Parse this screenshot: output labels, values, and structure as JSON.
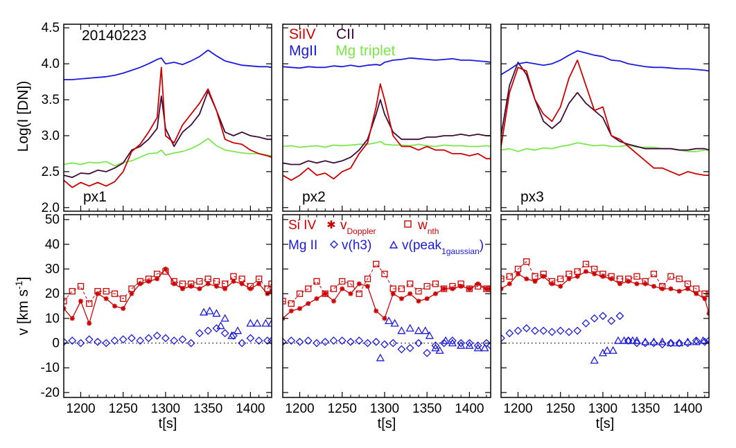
{
  "chart_data": {
    "type": "line",
    "date_label": "20140223",
    "x_label": "t[s]",
    "x_range": [
      1180,
      1425
    ],
    "x_ticks": [
      "1200",
      "1250",
      "1300",
      "1350",
      "1400"
    ],
    "top": {
      "ylabel_base": "Log(I [DN])",
      "y_range": [
        1.95,
        4.55
      ],
      "y_ticks": [
        "2.0",
        "2.5",
        "3.0",
        "3.5",
        "4.0",
        "4.5"
      ],
      "legend": {
        "siiv": "SiIV",
        "cii": "CII",
        "mgii": "MgII",
        "mgtrip": "Mg triplet"
      }
    },
    "bottom": {
      "ylabel_base": "v [km s",
      "ylabel_sup": "-1",
      "ylabel_end": "]",
      "y_range": [
        -22,
        52
      ],
      "y_ticks": [
        "-20",
        "-10",
        "0",
        "10",
        "20",
        "30",
        "40",
        "50"
      ],
      "legend": {
        "siiv": "Si IV",
        "mgii": "Mg II",
        "vdop": "v",
        "vdop_sub": "Doppler",
        "wnth": "w",
        "wnth_sub": "nth",
        "vh3": "v(h3)",
        "vpeak": "v(peak",
        "vpeak_sub": "1gaussian",
        "vpeak_end": ")"
      }
    },
    "colors": {
      "siiv": "#cc0000",
      "cii": "#3d0a3a",
      "mgii": "#1a1adc",
      "mgtrip": "#7ae64a",
      "axis": "#000000"
    },
    "panels": [
      {
        "label": "px1",
        "top": {
          "x": [
            1180,
            1190,
            1200,
            1210,
            1220,
            1230,
            1240,
            1250,
            1260,
            1270,
            1280,
            1290,
            1295,
            1300,
            1310,
            1320,
            1330,
            1340,
            1350,
            1360,
            1370,
            1380,
            1390,
            1400,
            1410,
            1420,
            1425
          ],
          "mgii": [
            3.78,
            3.78,
            3.79,
            3.8,
            3.81,
            3.82,
            3.84,
            3.87,
            3.91,
            3.95,
            4.0,
            4.06,
            4.08,
            4.0,
            4.02,
            3.99,
            4.04,
            4.1,
            4.19,
            4.11,
            4.04,
            4.01,
            3.98,
            3.97,
            3.96,
            3.96,
            3.95
          ],
          "siiv": [
            2.38,
            2.28,
            2.35,
            2.3,
            2.35,
            2.3,
            2.36,
            2.5,
            2.78,
            2.88,
            3.05,
            3.25,
            3.95,
            3.0,
            2.9,
            3.15,
            3.3,
            3.45,
            3.65,
            3.35,
            2.95,
            2.9,
            2.88,
            2.8,
            2.75,
            2.72,
            2.7
          ],
          "cii": [
            2.45,
            2.42,
            2.48,
            2.47,
            2.52,
            2.5,
            2.55,
            2.62,
            2.8,
            2.85,
            2.95,
            3.1,
            3.55,
            3.1,
            2.85,
            3.05,
            3.15,
            3.3,
            3.62,
            3.35,
            3.05,
            3.0,
            3.05,
            3.0,
            2.98,
            2.95,
            2.95
          ],
          "mgtrip": [
            2.6,
            2.62,
            2.6,
            2.63,
            2.62,
            2.64,
            2.58,
            2.63,
            2.65,
            2.7,
            2.75,
            2.76,
            2.8,
            2.73,
            2.76,
            2.78,
            2.82,
            2.88,
            2.96,
            2.86,
            2.8,
            2.78,
            2.76,
            2.75,
            2.75,
            2.73,
            2.72
          ]
        },
        "bottom": {
          "x": [
            1180,
            1190,
            1200,
            1210,
            1220,
            1230,
            1240,
            1250,
            1260,
            1270,
            1280,
            1290,
            1300,
            1310,
            1320,
            1330,
            1340,
            1350,
            1360,
            1370,
            1380,
            1390,
            1400,
            1410,
            1420,
            1425
          ],
          "vdop": [
            14,
            10,
            17,
            8,
            20,
            18,
            15,
            14,
            20,
            24,
            25,
            26,
            30,
            24,
            22,
            23,
            22,
            24,
            23,
            22,
            25,
            24,
            22,
            24,
            20,
            21
          ],
          "wnth": [
            17,
            21,
            23,
            16,
            21,
            21,
            20,
            18,
            22,
            25,
            26,
            28,
            29,
            25,
            24,
            24,
            25,
            26,
            25,
            24,
            27,
            26,
            23,
            26,
            22,
            24
          ],
          "vh3": [
            0.5,
            1,
            0,
            1.5,
            0.5,
            0,
            1,
            1.5,
            2,
            1,
            2,
            3,
            2,
            1,
            1.5,
            0,
            4,
            5,
            6,
            4,
            3,
            0,
            2,
            1,
            1,
            1
          ],
          "peak_x": [
            1345,
            1352,
            1360,
            1365,
            1370,
            1378,
            1385,
            1400,
            1408,
            1418,
            1425
          ],
          "peak": [
            12.5,
            13,
            12,
            7,
            10,
            3,
            5,
            8,
            8,
            8,
            8
          ]
        }
      },
      {
        "label": "px2",
        "top": {
          "x": [
            1180,
            1190,
            1200,
            1210,
            1220,
            1230,
            1240,
            1250,
            1260,
            1270,
            1280,
            1290,
            1295,
            1300,
            1310,
            1320,
            1330,
            1340,
            1350,
            1360,
            1370,
            1380,
            1390,
            1400,
            1410,
            1420,
            1425
          ],
          "mgii": [
            3.96,
            3.95,
            3.94,
            3.96,
            3.95,
            3.95,
            3.97,
            3.96,
            3.98,
            3.96,
            3.98,
            3.99,
            3.98,
            4.02,
            4.05,
            4.06,
            4.08,
            4.07,
            4.06,
            4.05,
            4.06,
            4.07,
            4.05,
            4.05,
            4.04,
            4.03,
            4.02
          ],
          "siiv": [
            2.45,
            2.38,
            2.45,
            2.55,
            2.45,
            2.48,
            2.4,
            2.5,
            2.55,
            2.75,
            2.9,
            3.4,
            3.72,
            3.5,
            3.0,
            2.85,
            2.85,
            2.8,
            2.85,
            2.8,
            2.8,
            2.75,
            2.75,
            2.72,
            2.75,
            2.68,
            2.68
          ],
          "cii": [
            2.62,
            2.6,
            2.6,
            2.65,
            2.62,
            2.65,
            2.62,
            2.65,
            2.7,
            2.8,
            2.95,
            3.3,
            3.5,
            3.3,
            3.05,
            2.95,
            2.95,
            2.95,
            2.98,
            2.98,
            3.0,
            3.0,
            3.02,
            3.0,
            3.02,
            3.0,
            3.0
          ],
          "mgtrip": [
            2.85,
            2.86,
            2.84,
            2.85,
            2.86,
            2.84,
            2.87,
            2.86,
            2.87,
            2.88,
            2.88,
            2.9,
            2.92,
            2.88,
            2.87,
            2.87,
            2.86,
            2.88,
            2.86,
            2.85,
            2.87,
            2.86,
            2.86,
            2.85,
            2.85,
            2.86,
            2.85
          ]
        },
        "bottom": {
          "x": [
            1180,
            1190,
            1200,
            1210,
            1220,
            1230,
            1240,
            1250,
            1260,
            1270,
            1280,
            1290,
            1300,
            1310,
            1320,
            1330,
            1340,
            1350,
            1360,
            1370,
            1380,
            1390,
            1400,
            1410,
            1420,
            1425
          ],
          "vdop": [
            10,
            13,
            14,
            16,
            18,
            20,
            17,
            22,
            20,
            24,
            23,
            13,
            10,
            20,
            18,
            20,
            17,
            18,
            20,
            22,
            22,
            23,
            22,
            24,
            22,
            22
          ],
          "wnth": [
            17,
            16,
            20,
            22,
            25,
            20,
            22,
            25,
            24,
            20,
            26,
            32,
            28,
            22,
            22,
            24,
            21,
            23,
            24,
            22,
            23,
            24,
            22,
            23,
            22,
            22
          ],
          "vh3": [
            0.5,
            1,
            0.5,
            1,
            0,
            0.5,
            1,
            1,
            0.5,
            1,
            0,
            0.5,
            -0.5,
            0,
            -2.5,
            -2,
            0,
            -4,
            -1,
            0,
            1,
            0,
            0,
            -1,
            0,
            -1
          ],
          "peak_x": [
            1295,
            1305,
            1312,
            1320,
            1330,
            1340,
            1348,
            1353,
            1360,
            1365,
            1372,
            1380,
            1390,
            1400,
            1410,
            1418
          ],
          "peak": [
            -6,
            9,
            8,
            5,
            6,
            5,
            5,
            3,
            -2,
            -3,
            1,
            0,
            -1,
            -1,
            -2,
            -2
          ]
        }
      },
      {
        "label": "px3",
        "top": {
          "x": [
            1180,
            1190,
            1200,
            1210,
            1220,
            1230,
            1240,
            1250,
            1260,
            1270,
            1280,
            1290,
            1300,
            1310,
            1320,
            1330,
            1340,
            1350,
            1360,
            1370,
            1380,
            1390,
            1400,
            1410,
            1420,
            1425
          ],
          "mgii": [
            3.85,
            3.92,
            4.0,
            4.02,
            4.0,
            3.98,
            4.0,
            4.05,
            4.12,
            4.18,
            4.15,
            4.12,
            4.1,
            4.05,
            4.04,
            4.0,
            3.98,
            3.96,
            3.95,
            3.95,
            3.94,
            3.93,
            3.93,
            3.92,
            3.91,
            3.9
          ],
          "siiv": [
            2.85,
            3.6,
            3.95,
            3.9,
            3.5,
            3.3,
            3.2,
            3.4,
            3.8,
            4.05,
            3.7,
            3.35,
            3.4,
            3.0,
            2.95,
            2.85,
            2.75,
            2.65,
            2.55,
            2.55,
            2.5,
            2.45,
            2.5,
            2.47,
            2.45,
            2.45
          ],
          "cii": [
            3.0,
            3.7,
            4.02,
            3.85,
            3.5,
            3.2,
            3.1,
            3.2,
            3.45,
            3.6,
            3.45,
            3.35,
            3.25,
            3.0,
            2.92,
            2.88,
            2.85,
            2.82,
            2.82,
            2.82,
            2.82,
            2.8,
            2.8,
            2.82,
            2.82,
            2.8
          ],
          "mgtrip": [
            2.8,
            2.82,
            2.78,
            2.82,
            2.8,
            2.83,
            2.82,
            2.85,
            2.87,
            2.9,
            2.88,
            2.86,
            2.87,
            2.85,
            2.85,
            2.87,
            2.84,
            2.84,
            2.84,
            2.82,
            2.82,
            2.8,
            2.78,
            2.78,
            2.8,
            2.8
          ]
        },
        "bottom": {
          "x": [
            1180,
            1190,
            1200,
            1210,
            1220,
            1230,
            1240,
            1250,
            1260,
            1270,
            1280,
            1290,
            1300,
            1310,
            1320,
            1330,
            1340,
            1350,
            1360,
            1370,
            1380,
            1390,
            1400,
            1410,
            1420,
            1425
          ],
          "vdop": [
            22,
            24,
            28,
            26,
            25,
            27,
            24,
            23,
            26,
            27,
            29,
            28,
            27,
            26,
            24,
            25,
            24,
            24,
            23,
            22,
            22,
            21,
            22,
            20,
            18,
            12
          ],
          "wnth": [
            26,
            27,
            30,
            33,
            27,
            28,
            25,
            26,
            28,
            29,
            32,
            30,
            28,
            27,
            26,
            26,
            27,
            25,
            28,
            23,
            27,
            26,
            24,
            22,
            20,
            20
          ],
          "vh3": [
            2,
            4,
            5,
            6,
            5,
            5,
            4.5,
            5,
            4.5,
            5,
            8,
            10,
            11,
            9,
            11,
            1,
            0,
            0,
            0,
            -0.5,
            0,
            0,
            0,
            1,
            0.5,
            1
          ],
          "peak_x": [
            1290,
            1300,
            1305,
            1312,
            1318,
            1325,
            1330,
            1335,
            1340,
            1350,
            1360,
            1370,
            1380,
            1390,
            1400,
            1410,
            1418
          ],
          "peak": [
            -7,
            -4,
            -3,
            -3,
            1,
            1,
            1,
            1,
            1,
            0.5,
            0.5,
            0.5,
            0,
            0,
            0.5,
            0.5,
            1
          ]
        }
      }
    ]
  }
}
